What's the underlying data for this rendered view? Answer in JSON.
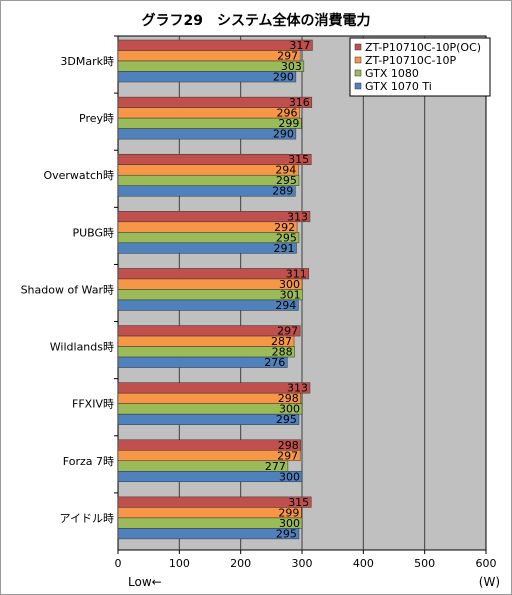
{
  "chart_data": {
    "type": "bar",
    "orientation": "horizontal",
    "title": "グラフ29　システム全体の消費電力",
    "unit_label": "(W)",
    "low_label": "Low←",
    "xlim": [
      0,
      600
    ],
    "xticks": [
      0,
      100,
      200,
      300,
      400,
      500,
      600
    ],
    "grid": true,
    "legend_position": "top-right",
    "categories": [
      "3DMark時",
      "Prey時",
      "Overwatch時",
      "PUBG時",
      "Shadow of War時",
      "Wildlands時",
      "FFXIV時",
      "Forza 7時",
      "アイドル時"
    ],
    "series": [
      {
        "name": "ZT-P10710C-10P(OC)",
        "color": "#c0504d",
        "values": [
          317,
          316,
          315,
          313,
          311,
          297,
          313,
          298,
          315
        ]
      },
      {
        "name": "ZT-P10710C-10P",
        "color": "#f79646",
        "values": [
          297,
          296,
          294,
          292,
          300,
          287,
          298,
          297,
          299
        ]
      },
      {
        "name": "GTX 1080",
        "color": "#9bbb59",
        "values": [
          303,
          299,
          295,
          295,
          301,
          288,
          300,
          277,
          300
        ]
      },
      {
        "name": "GTX 1070 Ti",
        "color": "#4f81bd",
        "values": [
          290,
          290,
          289,
          291,
          294,
          276,
          295,
          300,
          295
        ]
      }
    ]
  }
}
